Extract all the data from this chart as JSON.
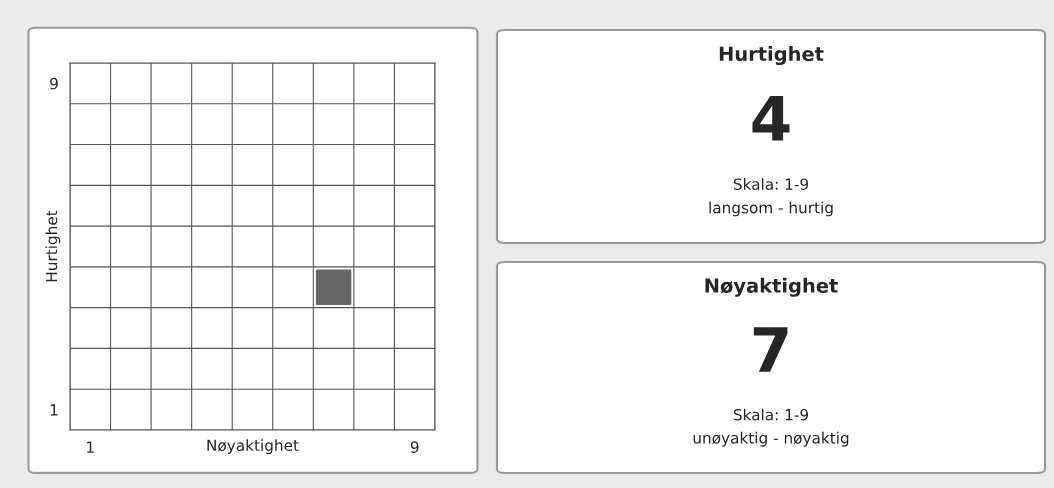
{
  "chart_data": [
    {
      "type": "scatter",
      "xlabel": "Nøyaktighet",
      "ylabel": "Hurtighet",
      "series": [
        {
          "color": "#666666",
          "x": [
            7
          ],
          "values": [
            4
          ]
        }
      ],
      "marker": "square",
      "grid": true,
      "legend": false,
      "xlim": [
        0.5,
        9.5
      ],
      "ylim": [
        0.5,
        9.5
      ],
      "xticks": [
        {
          "value": 0.5,
          "label": null
        },
        1,
        {
          "value": 1.5,
          "label": null
        },
        {
          "value": 2.5,
          "label": null
        },
        {
          "value": 3.5,
          "label": null
        },
        {
          "value": 4.5,
          "label": null
        },
        {
          "value": 5.5,
          "label": null
        },
        {
          "value": 6.5,
          "label": null
        },
        {
          "value": 7.5,
          "label": null
        },
        {
          "value": 8.5,
          "label": null
        },
        9,
        {
          "value": 9.5,
          "label": null
        }
      ],
      "yticks": [
        {
          "value": 0.5,
          "label": null
        },
        1,
        {
          "value": 1.5,
          "label": null
        },
        {
          "value": 2.5,
          "label": null
        },
        {
          "value": 3.5,
          "label": null
        },
        {
          "value": 4.5,
          "label": null
        },
        {
          "value": 5.5,
          "label": null
        },
        {
          "value": 6.5,
          "label": null
        },
        {
          "value": 7.5,
          "label": null
        },
        {
          "value": 8.5,
          "label": null
        },
        9,
        {
          "value": 9.5,
          "label": null
        }
      ]
    },
    {
      "type": "other",
      "title": "Hurtighet",
      "annotations": [
        "4",
        "Skala: 1-9",
        "langsom - hurtig"
      ]
    },
    {
      "type": "other",
      "title": "Nøyaktighet",
      "annotations": [
        "7",
        "Skala: 1-9",
        "unøyaktig - nøyaktig"
      ]
    }
  ]
}
